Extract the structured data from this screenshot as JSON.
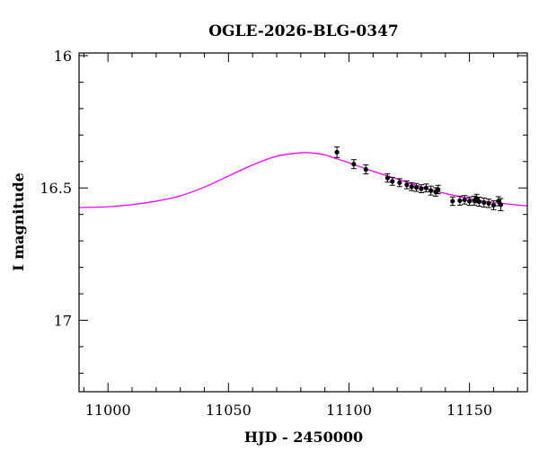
{
  "chart_data": {
    "type": "scatter",
    "title": "OGLE-2026-BLG-0347",
    "xlabel": "HJD - 2450000",
    "ylabel": "I magnitude",
    "xlim": [
      10988,
      11174
    ],
    "ylim": [
      17.27,
      15.99
    ],
    "y_inverted": true,
    "x_ticks_major": [
      11000,
      11050,
      11100,
      11150
    ],
    "x_tick_labels": [
      "11000",
      "11050",
      "11100",
      "11150"
    ],
    "y_ticks_major": [
      16,
      16.5,
      17
    ],
    "y_tick_labels": [
      "16",
      "16.5",
      "17"
    ],
    "x_minor_step": 10,
    "y_minor_step": 0.1,
    "grid": false,
    "series": [
      {
        "type": "line",
        "color": "#ff00ff",
        "x": [
          10988,
          11000,
          11010,
          11020,
          11030,
          11040,
          11050,
          11060,
          11070,
          11080,
          11085,
          11090,
          11095,
          11100,
          11110,
          11120,
          11130,
          11140,
          11150,
          11160,
          11174
        ],
        "y": [
          16.574,
          16.571,
          16.563,
          16.55,
          16.53,
          16.497,
          16.455,
          16.413,
          16.38,
          16.367,
          16.368,
          16.375,
          16.39,
          16.405,
          16.437,
          16.466,
          16.496,
          16.521,
          16.54,
          16.555,
          16.568
        ]
      },
      {
        "type": "scatter",
        "color": "#000000",
        "x": [
          11095,
          11102,
          11107,
          11116,
          11118,
          11121,
          11124,
          11126,
          11128,
          11130,
          11132,
          11134,
          11136,
          11137,
          11143,
          11146,
          11148,
          11150,
          11152,
          11153,
          11154,
          11156,
          11158,
          11160,
          11162,
          11163
        ],
        "y": [
          16.365,
          16.41,
          16.43,
          16.462,
          16.475,
          16.48,
          16.488,
          16.495,
          16.498,
          16.503,
          16.5,
          16.51,
          16.515,
          16.506,
          16.55,
          16.548,
          16.545,
          16.55,
          16.548,
          16.54,
          16.552,
          16.555,
          16.558,
          16.565,
          16.55,
          16.563
        ],
        "err": [
          0.02,
          0.017,
          0.017,
          0.016,
          0.015,
          0.015,
          0.015,
          0.015,
          0.015,
          0.015,
          0.015,
          0.017,
          0.016,
          0.016,
          0.016,
          0.017,
          0.016,
          0.016,
          0.017,
          0.016,
          0.017,
          0.017,
          0.016,
          0.017,
          0.017,
          0.023
        ]
      }
    ]
  }
}
